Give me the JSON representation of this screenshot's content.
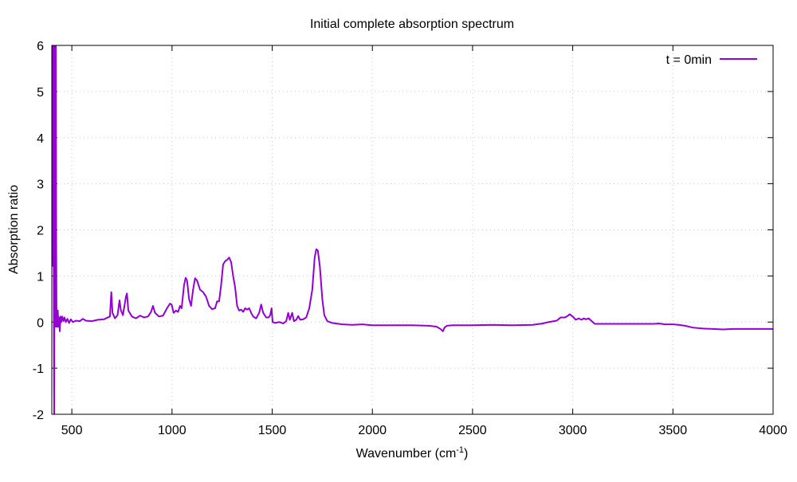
{
  "chart_data": {
    "type": "line",
    "title": "Initial complete absorption spectrum",
    "xlabel_main": "Wavenumber (cm",
    "xlabel_sup": "-1",
    "xlabel_close": ")",
    "ylabel": "Absorption ratio",
    "xlim": [
      400,
      4000
    ],
    "ylim": [
      -2,
      6
    ],
    "x_ticks": [
      500,
      1000,
      1500,
      2000,
      2500,
      3000,
      3500,
      4000
    ],
    "y_ticks": [
      -2,
      -1,
      0,
      1,
      2,
      3,
      4,
      5,
      6
    ],
    "grid": true,
    "legend_position": "top-right",
    "series": [
      {
        "name": "t = 0min",
        "color": "#9400d3",
        "points": [
          [
            402,
            1.2
          ],
          [
            404,
            6.0
          ],
          [
            406,
            5.0
          ],
          [
            408,
            6.0
          ],
          [
            410,
            0.3
          ],
          [
            412,
            -2.0
          ],
          [
            414,
            6.0
          ],
          [
            416,
            1.0
          ],
          [
            418,
            -0.1
          ],
          [
            420,
            6.0
          ],
          [
            422,
            1.7
          ],
          [
            424,
            -0.1
          ],
          [
            426,
            0.2
          ],
          [
            428,
            -0.1
          ],
          [
            430,
            0.25
          ],
          [
            433,
            -0.1
          ],
          [
            436,
            0.1
          ],
          [
            440,
            -0.2
          ],
          [
            443,
            0.12
          ],
          [
            447,
            0.0
          ],
          [
            452,
            0.12
          ],
          [
            458,
            0.02
          ],
          [
            463,
            0.1
          ],
          [
            470,
            0.0
          ],
          [
            478,
            0.07
          ],
          [
            486,
            -0.02
          ],
          [
            495,
            0.06
          ],
          [
            505,
            0.0
          ],
          [
            520,
            0.03
          ],
          [
            540,
            0.02
          ],
          [
            555,
            0.07
          ],
          [
            570,
            0.03
          ],
          [
            600,
            0.02
          ],
          [
            630,
            0.05
          ],
          [
            660,
            0.06
          ],
          [
            680,
            0.1
          ],
          [
            690,
            0.12
          ],
          [
            697,
            0.65
          ],
          [
            703,
            0.2
          ],
          [
            715,
            0.08
          ],
          [
            728,
            0.15
          ],
          [
            738,
            0.47
          ],
          [
            745,
            0.25
          ],
          [
            755,
            0.15
          ],
          [
            770,
            0.55
          ],
          [
            775,
            0.62
          ],
          [
            782,
            0.25
          ],
          [
            800,
            0.12
          ],
          [
            820,
            0.08
          ],
          [
            840,
            0.14
          ],
          [
            860,
            0.1
          ],
          [
            880,
            0.12
          ],
          [
            895,
            0.22
          ],
          [
            905,
            0.35
          ],
          [
            915,
            0.2
          ],
          [
            935,
            0.12
          ],
          [
            955,
            0.14
          ],
          [
            975,
            0.3
          ],
          [
            990,
            0.4
          ],
          [
            998,
            0.38
          ],
          [
            1008,
            0.2
          ],
          [
            1020,
            0.25
          ],
          [
            1030,
            0.22
          ],
          [
            1040,
            0.35
          ],
          [
            1048,
            0.3
          ],
          [
            1060,
            0.8
          ],
          [
            1068,
            0.96
          ],
          [
            1075,
            0.9
          ],
          [
            1085,
            0.5
          ],
          [
            1095,
            0.35
          ],
          [
            1105,
            0.7
          ],
          [
            1115,
            0.95
          ],
          [
            1125,
            0.9
          ],
          [
            1140,
            0.7
          ],
          [
            1155,
            0.65
          ],
          [
            1170,
            0.55
          ],
          [
            1185,
            0.35
          ],
          [
            1200,
            0.28
          ],
          [
            1215,
            0.3
          ],
          [
            1225,
            0.45
          ],
          [
            1235,
            0.45
          ],
          [
            1245,
            0.8
          ],
          [
            1255,
            1.25
          ],
          [
            1265,
            1.32
          ],
          [
            1275,
            1.35
          ],
          [
            1285,
            1.4
          ],
          [
            1295,
            1.3
          ],
          [
            1305,
            1.0
          ],
          [
            1315,
            0.75
          ],
          [
            1325,
            0.35
          ],
          [
            1335,
            0.25
          ],
          [
            1345,
            0.27
          ],
          [
            1355,
            0.22
          ],
          [
            1365,
            0.3
          ],
          [
            1375,
            0.27
          ],
          [
            1385,
            0.3
          ],
          [
            1395,
            0.2
          ],
          [
            1405,
            0.12
          ],
          [
            1420,
            0.08
          ],
          [
            1435,
            0.2
          ],
          [
            1445,
            0.38
          ],
          [
            1455,
            0.2
          ],
          [
            1470,
            0.1
          ],
          [
            1482,
            0.1
          ],
          [
            1490,
            0.15
          ],
          [
            1497,
            0.3
          ],
          [
            1502,
            0.0
          ],
          [
            1515,
            -0.02
          ],
          [
            1535,
            0.0
          ],
          [
            1555,
            -0.03
          ],
          [
            1570,
            0.02
          ],
          [
            1580,
            0.2
          ],
          [
            1588,
            0.05
          ],
          [
            1600,
            0.2
          ],
          [
            1608,
            0.02
          ],
          [
            1620,
            0.05
          ],
          [
            1630,
            0.13
          ],
          [
            1640,
            0.05
          ],
          [
            1655,
            0.06
          ],
          [
            1670,
            0.1
          ],
          [
            1685,
            0.3
          ],
          [
            1700,
            0.7
          ],
          [
            1712,
            1.4
          ],
          [
            1720,
            1.58
          ],
          [
            1728,
            1.55
          ],
          [
            1738,
            1.2
          ],
          [
            1750,
            0.5
          ],
          [
            1760,
            0.15
          ],
          [
            1775,
            0.02
          ],
          [
            1800,
            -0.02
          ],
          [
            1850,
            -0.05
          ],
          [
            1900,
            -0.06
          ],
          [
            1950,
            -0.05
          ],
          [
            2000,
            -0.07
          ],
          [
            2100,
            -0.07
          ],
          [
            2200,
            -0.07
          ],
          [
            2280,
            -0.08
          ],
          [
            2320,
            -0.1
          ],
          [
            2340,
            -0.15
          ],
          [
            2352,
            -0.2
          ],
          [
            2360,
            -0.12
          ],
          [
            2372,
            -0.08
          ],
          [
            2400,
            -0.07
          ],
          [
            2500,
            -0.07
          ],
          [
            2600,
            -0.06
          ],
          [
            2700,
            -0.07
          ],
          [
            2800,
            -0.06
          ],
          [
            2850,
            -0.03
          ],
          [
            2880,
            0.0
          ],
          [
            2920,
            0.03
          ],
          [
            2940,
            0.1
          ],
          [
            2960,
            0.1
          ],
          [
            2970,
            0.12
          ],
          [
            2985,
            0.17
          ],
          [
            3000,
            0.12
          ],
          [
            3015,
            0.05
          ],
          [
            3030,
            0.08
          ],
          [
            3045,
            0.05
          ],
          [
            3055,
            0.08
          ],
          [
            3065,
            0.06
          ],
          [
            3080,
            0.08
          ],
          [
            3095,
            0.02
          ],
          [
            3110,
            -0.04
          ],
          [
            3200,
            -0.04
          ],
          [
            3300,
            -0.04
          ],
          [
            3400,
            -0.04
          ],
          [
            3430,
            -0.03
          ],
          [
            3460,
            -0.05
          ],
          [
            3500,
            -0.05
          ],
          [
            3530,
            -0.06
          ],
          [
            3560,
            -0.08
          ],
          [
            3600,
            -0.12
          ],
          [
            3650,
            -0.14
          ],
          [
            3700,
            -0.15
          ],
          [
            3750,
            -0.16
          ],
          [
            3800,
            -0.15
          ],
          [
            3850,
            -0.15
          ],
          [
            3900,
            -0.15
          ],
          [
            3950,
            -0.15
          ],
          [
            4000,
            -0.15
          ]
        ]
      }
    ]
  }
}
